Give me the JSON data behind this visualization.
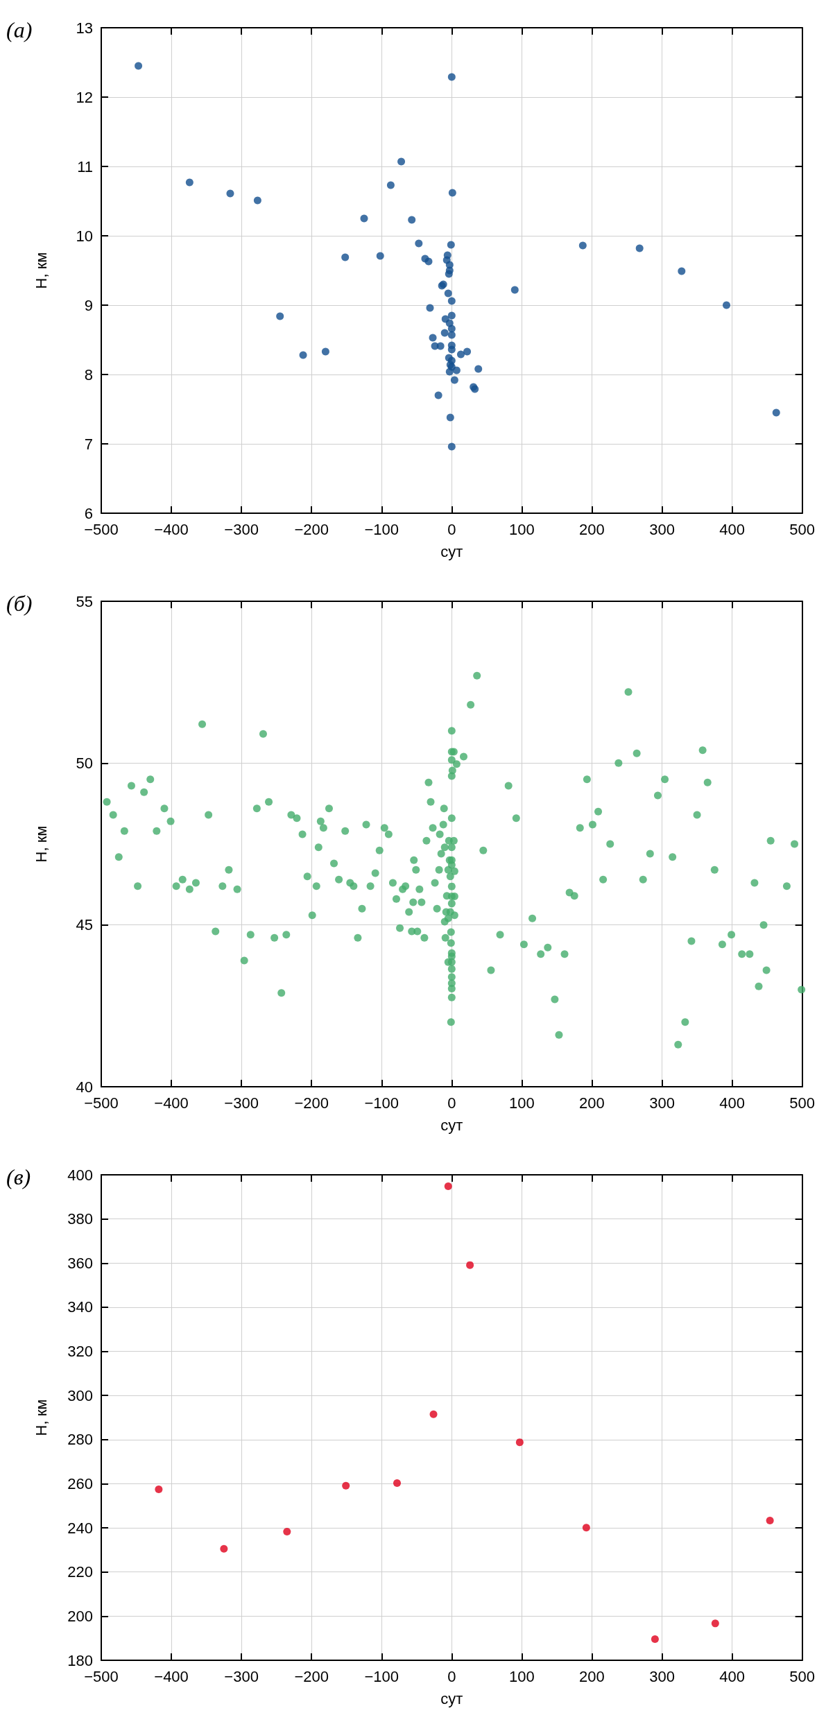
{
  "chart_data": [
    {
      "type": "scatter",
      "title": "(а)",
      "xlabel": "сут",
      "ylabel": "H, км",
      "grid": true,
      "marker": "circle",
      "xlim": [
        -500,
        500
      ],
      "xticks": [
        {
          "value": -500,
          "label": "−500"
        },
        {
          "value": -400,
          "label": "−400"
        },
        {
          "value": -300,
          "label": "−300"
        },
        {
          "value": -200,
          "label": "−200"
        },
        {
          "value": -100,
          "label": "−100"
        },
        0,
        100,
        200,
        300,
        400,
        500
      ],
      "ylim": [
        6,
        13
      ],
      "yticks": [
        6,
        7,
        8,
        9,
        10,
        11,
        12,
        13
      ],
      "series": [
        {
          "color": "#134f8f",
          "x": [
            -447,
            0,
            -72,
            -374,
            -87,
            -316,
            1,
            -277,
            -125,
            -57,
            -47,
            -1,
            187,
            268,
            -152,
            -102,
            -38,
            -33,
            -6,
            -7,
            -3,
            -3,
            -4,
            328,
            -14,
            -12,
            90,
            -5,
            0,
            -31,
            -245,
            392,
            0,
            -9,
            -3,
            0,
            -10,
            0,
            -27,
            -24,
            -16,
            0,
            0,
            -212,
            -180,
            13,
            22,
            -4,
            0,
            -2,
            0,
            -3,
            7,
            38,
            4,
            31,
            33,
            -19,
            -2,
            0,
            463
          ],
          "values": [
            12.45,
            12.29,
            11.07,
            10.77,
            10.73,
            10.61,
            10.62,
            10.51,
            10.25,
            10.23,
            9.89,
            9.87,
            9.86,
            9.82,
            9.69,
            9.71,
            9.67,
            9.63,
            9.72,
            9.65,
            9.58,
            9.5,
            9.45,
            9.49,
            9.28,
            9.3,
            9.22,
            9.17,
            9.06,
            8.96,
            8.84,
            9.0,
            8.85,
            8.8,
            8.74,
            8.66,
            8.6,
            8.57,
            8.53,
            8.41,
            8.41,
            8.42,
            8.36,
            8.28,
            8.33,
            8.29,
            8.33,
            8.24,
            8.2,
            8.14,
            8.11,
            8.04,
            8.06,
            8.08,
            7.92,
            7.82,
            7.79,
            7.7,
            7.38,
            6.96,
            7.45
          ]
        }
      ]
    },
    {
      "type": "scatter",
      "title": "(б)",
      "xlabel": "сут",
      "ylabel": "H, км",
      "grid": true,
      "marker": "circle",
      "xlim": [
        -500,
        500
      ],
      "xticks": [
        {
          "value": -500,
          "label": "−500"
        },
        {
          "value": -400,
          "label": "−400"
        },
        {
          "value": -300,
          "label": "−300"
        },
        {
          "value": -200,
          "label": "−200"
        },
        {
          "value": -100,
          "label": "−100"
        },
        0,
        100,
        200,
        300,
        400,
        500
      ],
      "ylim": [
        40,
        55
      ],
      "yticks": [
        40,
        45,
        50,
        55
      ],
      "series": [
        {
          "color": "#43ad6b",
          "x": [
            -492,
            -483,
            -475,
            -467,
            -457,
            -448,
            -439,
            -430,
            -421,
            -410,
            -401,
            -393,
            -384,
            -374,
            -365,
            -356,
            -347,
            -337,
            -327,
            -318,
            -306,
            -296,
            -287,
            -278,
            -269,
            -261,
            -253,
            -243,
            -236,
            -229,
            -221,
            -213,
            -206,
            -199,
            -193,
            -190,
            -187,
            -183,
            -175,
            -168,
            -161,
            -152,
            -145,
            -140,
            -134,
            -128,
            -122,
            -116,
            -109,
            -103,
            -96,
            -90,
            -84,
            -79,
            -74,
            -70,
            -66,
            -61,
            -57,
            -55,
            -54,
            -51,
            -49,
            -46,
            -43,
            -39,
            -36,
            -33,
            -30,
            -27,
            -24,
            -21,
            -18,
            -17,
            -15,
            -12,
            -11,
            -10,
            -10,
            -9,
            -8,
            -7,
            -5,
            -5,
            -4,
            -3,
            -2,
            -2,
            0,
            0,
            3,
            0,
            7,
            1,
            0,
            0,
            3,
            0,
            0,
            0,
            4,
            0,
            0,
            4,
            0,
            -1,
            -1,
            0,
            0,
            -5,
            0,
            0,
            0,
            0,
            0,
            0,
            -1,
            4,
            17,
            27,
            36,
            45,
            56,
            69,
            81,
            92,
            103,
            115,
            127,
            137,
            147,
            153,
            161,
            168,
            175,
            183,
            193,
            201,
            209,
            216,
            226,
            238,
            252,
            264,
            273,
            283,
            294,
            304,
            315,
            323,
            333,
            342,
            350,
            358,
            365,
            375,
            386,
            399,
            414,
            425,
            432,
            438,
            445,
            449,
            455,
            478,
            489,
            499
          ],
          "values": [
            48.8,
            48.4,
            47.1,
            47.9,
            49.3,
            46.2,
            49.1,
            49.5,
            47.9,
            48.6,
            48.2,
            46.2,
            46.4,
            46.1,
            46.3,
            51.2,
            48.4,
            44.8,
            46.2,
            46.7,
            46.1,
            43.9,
            44.7,
            48.6,
            50.9,
            48.8,
            44.6,
            42.9,
            44.7,
            48.4,
            48.3,
            47.8,
            46.5,
            45.3,
            46.2,
            47.4,
            48.2,
            48.0,
            48.6,
            46.9,
            46.4,
            47.9,
            46.3,
            46.2,
            44.6,
            45.5,
            48.1,
            46.2,
            46.6,
            47.3,
            48.0,
            47.8,
            46.3,
            45.8,
            44.9,
            46.1,
            46.2,
            45.4,
            44.8,
            45.7,
            47.0,
            46.7,
            44.8,
            46.1,
            45.7,
            44.6,
            47.6,
            49.4,
            48.8,
            48.0,
            46.3,
            45.5,
            46.7,
            47.8,
            47.2,
            48.1,
            48.6,
            47.4,
            45.1,
            44.6,
            45.4,
            45.9,
            46.7,
            45.2,
            47.6,
            47.0,
            46.5,
            45.4,
            51.0,
            50.35,
            50.35,
            50.1,
            49.97,
            49.77,
            49.6,
            48.3,
            47.6,
            47.4,
            47.0,
            46.85,
            46.66,
            46.19,
            45.88,
            45.88,
            45.66,
            44.78,
            44.44,
            44.13,
            44.03,
            43.85,
            43.85,
            43.64,
            43.39,
            43.2,
            43.03,
            42.76,
            42.0,
            45.3,
            50.2,
            51.8,
            52.7,
            47.3,
            43.6,
            44.7,
            49.3,
            48.3,
            44.4,
            45.2,
            44.1,
            44.3,
            42.7,
            41.6,
            44.1,
            46.0,
            45.9,
            48.0,
            49.5,
            48.1,
            48.5,
            46.4,
            47.5,
            50.0,
            52.2,
            50.3,
            46.4,
            47.2,
            49.0,
            49.5,
            47.1,
            41.3,
            42.0,
            44.5,
            48.4,
            50.4,
            49.4,
            46.7,
            44.4,
            44.7,
            44.1,
            44.1,
            46.3,
            43.1,
            45.0,
            43.6,
            47.6,
            46.2,
            47.5,
            43.0
          ]
        }
      ]
    },
    {
      "type": "scatter",
      "title": "(в)",
      "xlabel": "сут",
      "ylabel": "H, км",
      "grid": true,
      "marker": "circle",
      "xlim": [
        -500,
        500
      ],
      "xticks": [
        {
          "value": -500,
          "label": "−500"
        },
        {
          "value": -400,
          "label": "−400"
        },
        {
          "value": -300,
          "label": "−300"
        },
        {
          "value": -200,
          "label": "−200"
        },
        {
          "value": -100,
          "label": "−100"
        },
        0,
        100,
        200,
        300,
        400,
        500
      ],
      "ylim": [
        180,
        400
      ],
      "yticks": [
        180,
        200,
        220,
        240,
        260,
        280,
        300,
        320,
        340,
        360,
        380,
        400
      ],
      "series": [
        {
          "color": "#e0001b",
          "x": [
            -418,
            -325,
            -235,
            -151,
            -78,
            -26,
            -5,
            26,
            97,
            192,
            290,
            376,
            454
          ],
          "values": [
            257.5,
            230.5,
            238.3,
            259.1,
            260.3,
            291.5,
            394.8,
            359.1,
            278.8,
            240.1,
            189.6,
            196.7,
            243.3
          ]
        }
      ]
    }
  ]
}
